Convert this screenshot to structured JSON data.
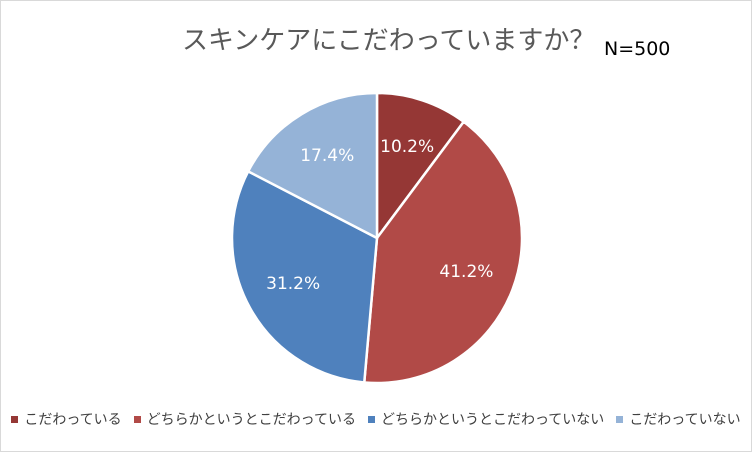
{
  "header": {
    "title": "スキンケアにこだわっていますか？",
    "sample_size": "N=500"
  },
  "chart_data": {
    "type": "pie",
    "title": "スキンケアにこだわっていますか？",
    "start_angle": "12 o'clock, clockwise",
    "slices": [
      {
        "label": "こだわっている",
        "value": 10.2,
        "data_label": "10.2%",
        "color": "#953735"
      },
      {
        "label": "どちらかというとこだわっている",
        "value": 41.2,
        "data_label": "41.2%",
        "color": "#b14a47"
      },
      {
        "label": "どちらかというとこだわっていない",
        "value": 31.2,
        "data_label": "31.2%",
        "color": "#4f81bd"
      },
      {
        "label": "こだわっていない",
        "value": 17.4,
        "data_label": "17.4%",
        "color": "#95b3d7"
      }
    ],
    "legend_position": "bottom"
  }
}
